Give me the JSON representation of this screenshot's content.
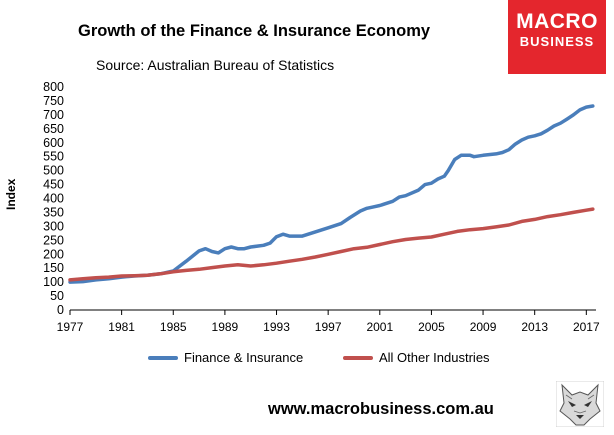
{
  "header": {
    "title": "Growth of the Finance & Insurance Economy",
    "subtitle": "Source: Australian Bureau of Statistics"
  },
  "logo": {
    "line1": "MACRO",
    "line2": "BUSINESS",
    "background": "#e4262d"
  },
  "footer": {
    "url": "www.macrobusiness.com.au",
    "wolf_icon": "wolf-head-icon"
  },
  "chart_data": {
    "type": "line",
    "title": "Growth of the Finance & Insurance Economy",
    "subtitle": "Source: Australian Bureau of Statistics",
    "xlabel": "",
    "ylabel": "Index",
    "xlim": [
      1977,
      2017.75
    ],
    "ylim": [
      0,
      800
    ],
    "ytick_step": 50,
    "xticks": [
      "1977",
      "1981",
      "1985",
      "1989",
      "1993",
      "1997",
      "2001",
      "2005",
      "2009",
      "2013",
      "2017"
    ],
    "grid": false,
    "legend": "bottom",
    "series": [
      {
        "name": "Finance & Insurance",
        "color": "#4a7ebb",
        "points": [
          [
            1977,
            100
          ],
          [
            1978,
            102
          ],
          [
            1979,
            108
          ],
          [
            1980,
            112
          ],
          [
            1981,
            118
          ],
          [
            1982,
            122
          ],
          [
            1983,
            125
          ],
          [
            1984,
            130
          ],
          [
            1985,
            140
          ],
          [
            1986,
            175
          ],
          [
            1987,
            212
          ],
          [
            1987.5,
            220
          ],
          [
            1988,
            210
          ],
          [
            1988.5,
            205
          ],
          [
            1989,
            220
          ],
          [
            1989.5,
            226
          ],
          [
            1990,
            220
          ],
          [
            1990.5,
            220
          ],
          [
            1991,
            226
          ],
          [
            1992,
            232
          ],
          [
            1992.5,
            240
          ],
          [
            1993,
            263
          ],
          [
            1993.5,
            272
          ],
          [
            1994,
            265
          ],
          [
            1995,
            265
          ],
          [
            1996,
            280
          ],
          [
            1997,
            295
          ],
          [
            1998,
            310
          ],
          [
            1998.7,
            332
          ],
          [
            1999.5,
            355
          ],
          [
            2000,
            365
          ],
          [
            2000.5,
            370
          ],
          [
            2001,
            375
          ],
          [
            2002,
            390
          ],
          [
            2002.5,
            405
          ],
          [
            2003,
            410
          ],
          [
            2004,
            430
          ],
          [
            2004.5,
            450
          ],
          [
            2005,
            455
          ],
          [
            2005.5,
            470
          ],
          [
            2006,
            480
          ],
          [
            2006.3,
            500
          ],
          [
            2006.8,
            540
          ],
          [
            2007.3,
            555
          ],
          [
            2008,
            555
          ],
          [
            2008.3,
            550
          ],
          [
            2009,
            555
          ],
          [
            2010,
            560
          ],
          [
            2010.5,
            565
          ],
          [
            2011,
            575
          ],
          [
            2011.5,
            595
          ],
          [
            2012,
            610
          ],
          [
            2012.5,
            620
          ],
          [
            2013,
            625
          ],
          [
            2013.5,
            632
          ],
          [
            2014,
            645
          ],
          [
            2014.5,
            660
          ],
          [
            2015,
            670
          ],
          [
            2015.5,
            685
          ],
          [
            2016,
            700
          ],
          [
            2016.5,
            718
          ],
          [
            2017,
            728
          ],
          [
            2017.5,
            732
          ]
        ]
      },
      {
        "name": "All Other Industries",
        "color": "#c0504d",
        "points": [
          [
            1977,
            108
          ],
          [
            1978,
            112
          ],
          [
            1979,
            116
          ],
          [
            1980,
            118
          ],
          [
            1981,
            122
          ],
          [
            1982,
            123
          ],
          [
            1983,
            125
          ],
          [
            1984,
            130
          ],
          [
            1985,
            137
          ],
          [
            1986,
            142
          ],
          [
            1987,
            146
          ],
          [
            1988,
            152
          ],
          [
            1989,
            158
          ],
          [
            1990,
            162
          ],
          [
            1991,
            158
          ],
          [
            1992,
            162
          ],
          [
            1993,
            168
          ],
          [
            1994,
            175
          ],
          [
            1995,
            182
          ],
          [
            1996,
            190
          ],
          [
            1997,
            200
          ],
          [
            1998,
            210
          ],
          [
            1999,
            220
          ],
          [
            2000,
            225
          ],
          [
            2001,
            235
          ],
          [
            2002,
            245
          ],
          [
            2003,
            253
          ],
          [
            2004,
            258
          ],
          [
            2005,
            262
          ],
          [
            2006,
            272
          ],
          [
            2007,
            282
          ],
          [
            2008,
            288
          ],
          [
            2009,
            292
          ],
          [
            2010,
            298
          ],
          [
            2011,
            305
          ],
          [
            2012,
            318
          ],
          [
            2013,
            325
          ],
          [
            2014,
            335
          ],
          [
            2015,
            342
          ],
          [
            2016,
            350
          ],
          [
            2017,
            358
          ],
          [
            2017.5,
            362
          ]
        ]
      }
    ]
  }
}
